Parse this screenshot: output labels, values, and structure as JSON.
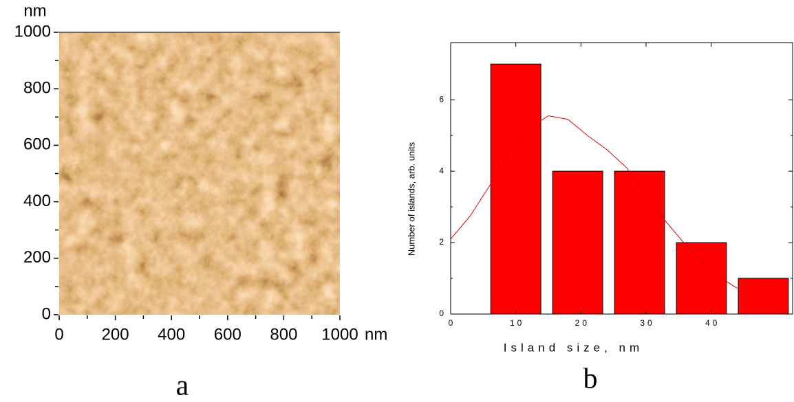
{
  "chart_data": [
    {
      "type": "image",
      "panel_label": "a",
      "xlabel": "nm",
      "ylabel": "nm",
      "xlim": [
        0,
        1000
      ],
      "ylim": [
        0,
        1000
      ],
      "xticks": [
        0,
        200,
        400,
        600,
        800,
        1000
      ],
      "yticks": [
        0,
        200,
        400,
        600,
        800,
        1000
      ]
    },
    {
      "type": "bar",
      "panel_label": "b",
      "xlabel": "Island size, nm",
      "ylabel": "Number of islands, arb. units",
      "x": [
        10,
        19.5,
        29,
        38.5,
        48
      ],
      "values": [
        7,
        4,
        4,
        2,
        1
      ],
      "color": "#ff0000",
      "edgecolor": "#000000",
      "xlim": [
        0,
        52.5
      ],
      "ylim": [
        0,
        7.6
      ],
      "xticks": [
        0,
        10,
        20,
        30,
        40
      ],
      "yticks": [
        0,
        2,
        4,
        6
      ],
      "lines": [
        {
          "color": "#e00000",
          "x": [
            0,
            3,
            6,
            9,
            12,
            15,
            18,
            21,
            24,
            27,
            30,
            33,
            36,
            39,
            42,
            44
          ],
          "values": [
            2.1,
            2.75,
            3.6,
            4.5,
            5.2,
            5.55,
            5.45,
            5.0,
            4.6,
            4.1,
            3.3,
            2.6,
            1.95,
            1.4,
            0.95,
            0.72
          ]
        }
      ]
    }
  ]
}
